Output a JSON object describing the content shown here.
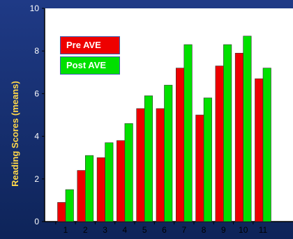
{
  "colors": {
    "background": "#16307a",
    "plot_area": "#ffffff",
    "pre": "#ee0000",
    "post": "#00e000",
    "axis_title": "#ffd84a",
    "tick_text": "#000000"
  },
  "chart_data": {
    "type": "bar",
    "title": "",
    "xlabel": "",
    "ylabel": "Reading Scores (means)",
    "ylim": [
      0,
      10
    ],
    "yticks": [
      0,
      2,
      4,
      6,
      8,
      10
    ],
    "categories": [
      "1",
      "2",
      "3",
      "4",
      "5",
      "6",
      "7",
      "8",
      "9",
      "10",
      "11"
    ],
    "series": [
      {
        "name": "Pre AVE",
        "color": "#ee0000",
        "values": [
          0.9,
          2.4,
          3.0,
          3.8,
          5.3,
          5.3,
          7.2,
          5.0,
          7.3,
          7.9,
          6.7
        ]
      },
      {
        "name": "Post AVE",
        "color": "#00e000",
        "values": [
          1.5,
          3.1,
          3.7,
          4.6,
          5.9,
          6.4,
          8.3,
          5.8,
          8.3,
          8.7,
          7.2
        ]
      }
    ],
    "legend_position": "top-left",
    "grid": false
  }
}
